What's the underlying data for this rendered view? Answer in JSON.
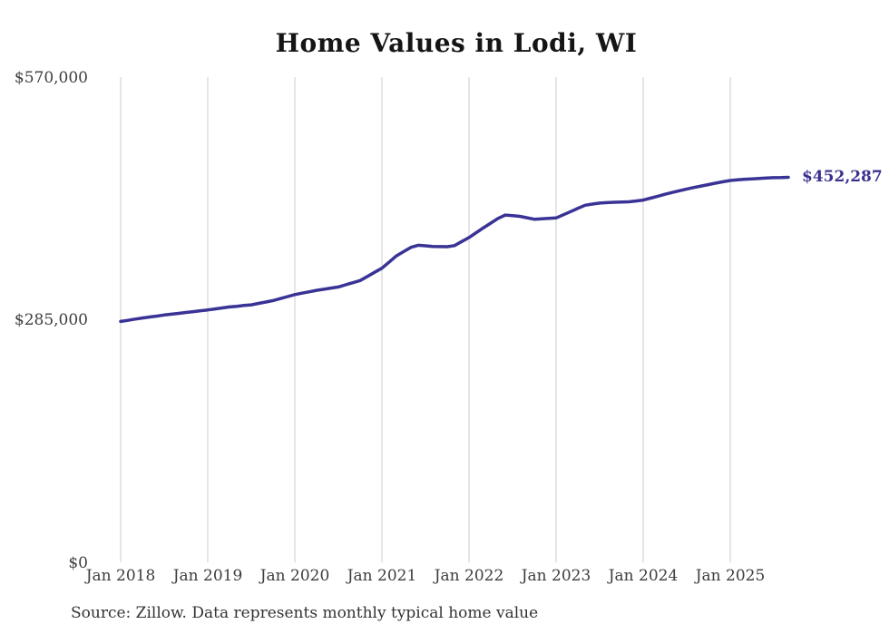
{
  "page": {
    "title": "Home Values in Lodi, WI",
    "source_note": "Source: Zillow. Data represents monthly typical home value"
  },
  "chart_data": {
    "type": "line",
    "title": "Home Values in Lodi, WI",
    "series_name": "Monthly typical home value",
    "units": "USD",
    "grid": "vertical-only",
    "legend": "none",
    "line_color": "#3a3396",
    "grid_color": "#cccccc",
    "end_label": "$452,287",
    "end_value": 452287,
    "ylim": [
      0,
      570000
    ],
    "y_ticks": [
      {
        "value": 570000,
        "label": "$570,000"
      },
      {
        "value": 285000,
        "label": "$285,000"
      },
      {
        "value": 0,
        "label": "$0"
      }
    ],
    "x_ticks": [
      {
        "month": "2018-01",
        "label": "Jan 2018"
      },
      {
        "month": "2019-01",
        "label": "Jan 2019"
      },
      {
        "month": "2020-01",
        "label": "Jan 2020"
      },
      {
        "month": "2021-01",
        "label": "Jan 2021"
      },
      {
        "month": "2022-01",
        "label": "Jan 2022"
      },
      {
        "month": "2023-01",
        "label": "Jan 2023"
      },
      {
        "month": "2024-01",
        "label": "Jan 2024"
      },
      {
        "month": "2025-01",
        "label": "Jan 2025"
      }
    ],
    "x": [
      "2018-01",
      "2018-02",
      "2018-03",
      "2018-04",
      "2018-05",
      "2018-06",
      "2018-07",
      "2018-08",
      "2018-09",
      "2018-10",
      "2018-11",
      "2018-12",
      "2019-01",
      "2019-02",
      "2019-03",
      "2019-04",
      "2019-05",
      "2019-06",
      "2019-07",
      "2019-08",
      "2019-09",
      "2019-10",
      "2019-11",
      "2019-12",
      "2020-01",
      "2020-02",
      "2020-03",
      "2020-04",
      "2020-05",
      "2020-06",
      "2020-07",
      "2020-08",
      "2020-09",
      "2020-10",
      "2020-11",
      "2020-12",
      "2021-01",
      "2021-02",
      "2021-03",
      "2021-04",
      "2021-05",
      "2021-06",
      "2021-07",
      "2021-08",
      "2021-09",
      "2021-10",
      "2021-11",
      "2021-12",
      "2022-01",
      "2022-02",
      "2022-03",
      "2022-04",
      "2022-05",
      "2022-06",
      "2022-07",
      "2022-08",
      "2022-09",
      "2022-10",
      "2022-11",
      "2022-12",
      "2023-01",
      "2023-02",
      "2023-03",
      "2023-04",
      "2023-05",
      "2023-06",
      "2023-07",
      "2023-08",
      "2023-09",
      "2023-10",
      "2023-11",
      "2023-12",
      "2024-01",
      "2024-02",
      "2024-03",
      "2024-04",
      "2024-05",
      "2024-06",
      "2024-07",
      "2024-08",
      "2024-09",
      "2024-10",
      "2024-11",
      "2024-12",
      "2025-01",
      "2025-02",
      "2025-03",
      "2025-04",
      "2025-05",
      "2025-06",
      "2025-07",
      "2025-08",
      "2025-09"
    ],
    "values": [
      283000,
      284300,
      285700,
      287000,
      288200,
      289300,
      290500,
      291500,
      292500,
      293500,
      294500,
      295500,
      296500,
      297700,
      298800,
      300000,
      300800,
      301700,
      302500,
      304200,
      305800,
      307500,
      309800,
      312200,
      314500,
      316200,
      317800,
      319500,
      320800,
      322200,
      323500,
      326000,
      328500,
      331000,
      335800,
      340700,
      345500,
      352800,
      360000,
      365000,
      370000,
      372500,
      371800,
      371000,
      370900,
      370800,
      372000,
      376800,
      381500,
      387300,
      393000,
      398500,
      404000,
      408000,
      407300,
      406500,
      404800,
      403000,
      403500,
      404000,
      404500,
      408300,
      412000,
      415800,
      419500,
      420800,
      422000,
      422500,
      423000,
      423300,
      423500,
      424500,
      425500,
      427800,
      430000,
      432300,
      434500,
      436500,
      438500,
      440300,
      442000,
      443800,
      445500,
      447000,
      448500,
      449300,
      450000,
      450500,
      451000,
      451400,
      451800,
      452000,
      452287
    ]
  }
}
